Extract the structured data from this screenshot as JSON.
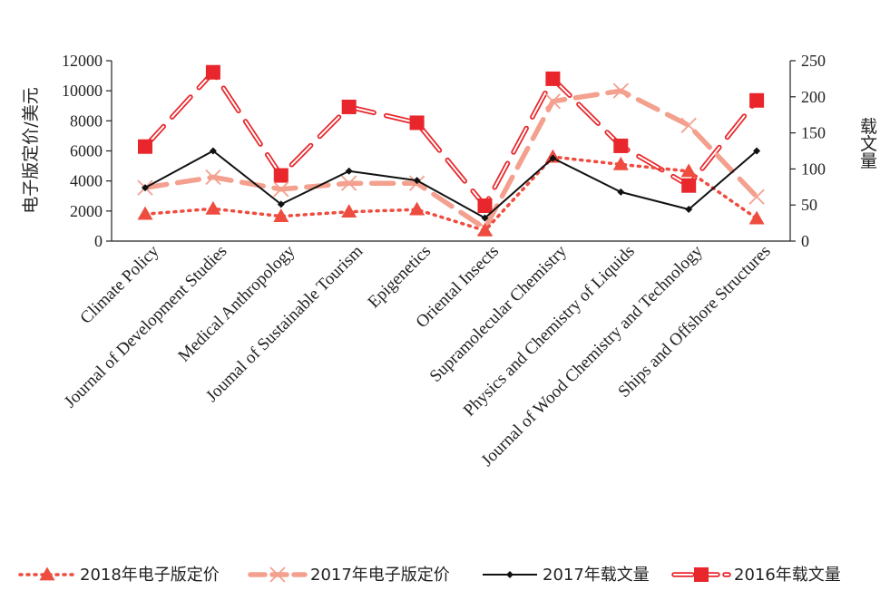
{
  "chart_data": {
    "type": "line",
    "categories": [
      "Climate Policy",
      "Journal of Development Studies",
      "Medical Anthropology",
      "Joumal of Sustainable Tourism",
      "Epigenetics",
      "Oriental Insects",
      "Supramolecular Chemistry",
      "Physics and Chemistry of Liquids",
      "Journal of Wood Chemistry and Technology",
      "Ships and Offshore Structures"
    ],
    "y_left": {
      "label": "电子版定价/美元",
      "range": [
        0,
        12000
      ],
      "ticks": [
        "0",
        "2000",
        "4000",
        "6000",
        "8000",
        "10000",
        "12000"
      ]
    },
    "y_right": {
      "label": "载文量",
      "range": [
        0,
        250
      ],
      "ticks": [
        "0",
        "50",
        "100",
        "150",
        "200",
        "250"
      ]
    },
    "series": [
      {
        "name": "2018年电子版定价",
        "axis": "left",
        "color": "#ee4c3f",
        "values": [
          1800,
          2150,
          1650,
          1950,
          2100,
          700,
          5600,
          5100,
          4650,
          1500
        ]
      },
      {
        "name": "2017年电子版定价",
        "axis": "left",
        "color": "#f4a08e",
        "values": [
          3550,
          4250,
          3450,
          3850,
          3850,
          850,
          9300,
          10000,
          7700,
          2950
        ]
      },
      {
        "name": "2017年载文量",
        "axis": "right",
        "color": "#111111",
        "values": [
          74,
          125,
          51,
          97,
          84,
          32,
          115,
          68,
          44,
          125
        ]
      },
      {
        "name": "2016年载文量",
        "axis": "right",
        "color": "#e8262b",
        "values": [
          131,
          234,
          91,
          186,
          164,
          49,
          225,
          132,
          77,
          195
        ]
      }
    ],
    "legend_position": "bottom",
    "grid": false
  }
}
